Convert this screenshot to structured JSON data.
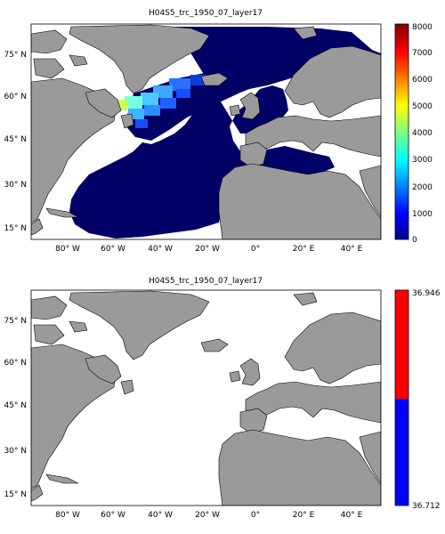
{
  "panels": [
    {
      "title": "H04S5_trc_1950_07_layer17",
      "y_ticks": [
        "75° N",
        "60° N",
        "45° N",
        "30° N",
        "15° N"
      ],
      "x_ticks": [
        "80° W",
        "60° W",
        "40° W",
        "20° W",
        "0°",
        "20° E",
        "40° E"
      ],
      "colorbar": {
        "ticks": [
          "8000",
          "7000",
          "6000",
          "5000",
          "4000",
          "3000",
          "2000",
          "1000",
          "0"
        ],
        "colormap": "jet",
        "range": [
          0,
          8000
        ]
      }
    },
    {
      "title": "H04S5_trc_1950_07_layer17",
      "y_ticks": [
        "75° N",
        "60° N",
        "45° N",
        "30° N",
        "15° N"
      ],
      "x_ticks": [
        "80° W",
        "60° W",
        "40° W",
        "20° W",
        "0°",
        "20° E",
        "40° E"
      ],
      "colorbar": {
        "ticks": [
          "36.946",
          "36.712"
        ],
        "colors": [
          "#ff0000",
          "#0000ff"
        ]
      }
    }
  ],
  "colors": {
    "land": "#9a9a9a",
    "ocean_low": "#000066",
    "background": "#ffffff"
  }
}
